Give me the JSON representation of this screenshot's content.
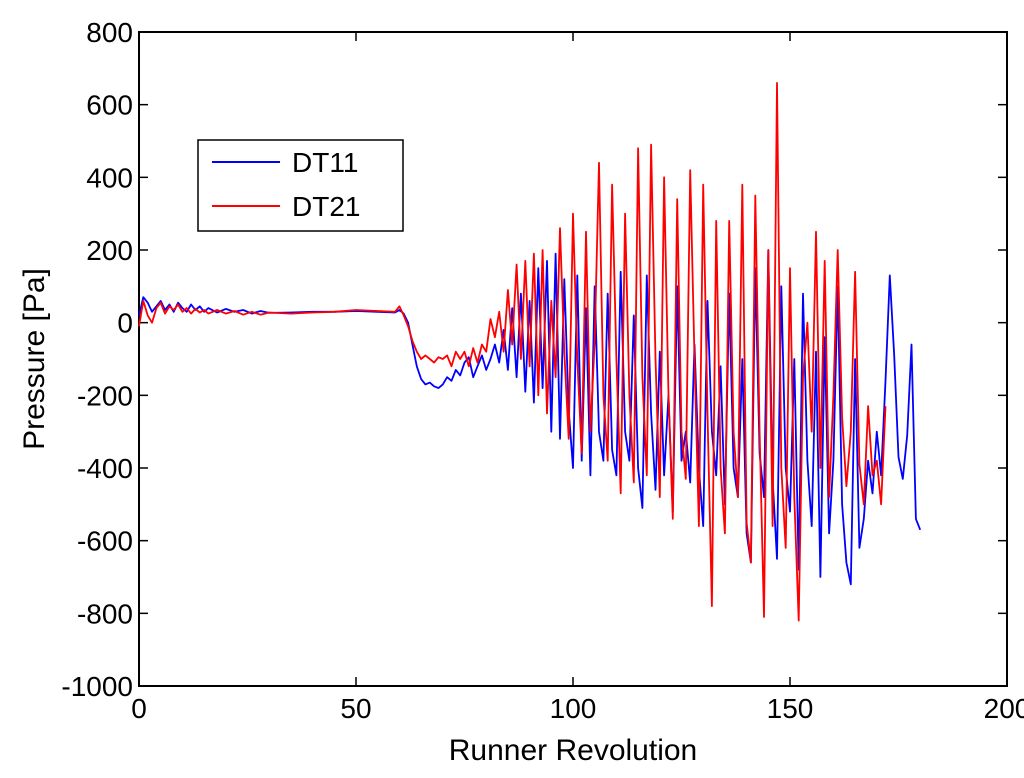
{
  "chart_data": {
    "type": "line",
    "title": "",
    "xlabel": "Runner Revolution",
    "ylabel": "Pressure [Pa]",
    "xlim": [
      0,
      200
    ],
    "ylim": [
      -1000,
      800
    ],
    "xticks": [
      0,
      50,
      100,
      150,
      200
    ],
    "yticks": [
      -1000,
      -800,
      -600,
      -400,
      -200,
      0,
      200,
      400,
      600,
      800
    ],
    "grid": false,
    "legend_position": "upper-left",
    "colors": {
      "DT11": "#0000ff",
      "DT21": "#ff0000",
      "axes": "#000000"
    },
    "series": [
      {
        "name": "DT11",
        "keyframes": [
          [
            0,
            20
          ],
          [
            1,
            70
          ],
          [
            2,
            55
          ],
          [
            3,
            30
          ],
          [
            4,
            45
          ],
          [
            5,
            60
          ],
          [
            6,
            35
          ],
          [
            7,
            50
          ],
          [
            8,
            30
          ],
          [
            9,
            55
          ],
          [
            10,
            40
          ],
          [
            11,
            30
          ],
          [
            12,
            50
          ],
          [
            13,
            35
          ],
          [
            14,
            45
          ],
          [
            15,
            30
          ],
          [
            16,
            40
          ],
          [
            18,
            28
          ],
          [
            20,
            38
          ],
          [
            22,
            30
          ],
          [
            24,
            35
          ],
          [
            26,
            25
          ],
          [
            28,
            32
          ],
          [
            30,
            27
          ],
          [
            35,
            28
          ],
          [
            40,
            30
          ],
          [
            45,
            30
          ],
          [
            50,
            32
          ],
          [
            55,
            30
          ],
          [
            59,
            28
          ],
          [
            60,
            35
          ],
          [
            61,
            25
          ],
          [
            62,
            0
          ],
          [
            63,
            -60
          ],
          [
            64,
            -120
          ],
          [
            65,
            -155
          ],
          [
            66,
            -170
          ],
          [
            67,
            -165
          ],
          [
            68,
            -175
          ],
          [
            69,
            -180
          ],
          [
            70,
            -170
          ],
          [
            71,
            -150
          ],
          [
            72,
            -160
          ],
          [
            73,
            -130
          ],
          [
            74,
            -145
          ],
          [
            75,
            -110
          ],
          [
            76,
            -95
          ],
          [
            77,
            -150
          ],
          [
            78,
            -120
          ],
          [
            79,
            -90
          ],
          [
            80,
            -130
          ],
          [
            81,
            -100
          ],
          [
            82,
            -60
          ],
          [
            83,
            -110
          ],
          [
            84,
            -20
          ],
          [
            85,
            -130
          ],
          [
            86,
            40
          ],
          [
            87,
            -150
          ],
          [
            88,
            80
          ],
          [
            89,
            -190
          ],
          [
            90,
            60
          ],
          [
            91,
            -220
          ],
          [
            92,
            150
          ],
          [
            93,
            -180
          ],
          [
            94,
            170
          ],
          [
            95,
            -300
          ],
          [
            96,
            190
          ],
          [
            97,
            -320
          ],
          [
            98,
            120
          ],
          [
            99,
            -240
          ],
          [
            100,
            -400
          ],
          [
            101,
            130
          ],
          [
            102,
            -380
          ],
          [
            103,
            40
          ],
          [
            104,
            -420
          ],
          [
            105,
            100
          ],
          [
            106,
            -300
          ],
          [
            107,
            -380
          ],
          [
            108,
            80
          ],
          [
            109,
            -350
          ],
          [
            110,
            -420
          ],
          [
            111,
            140
          ],
          [
            112,
            -300
          ],
          [
            113,
            -380
          ],
          [
            114,
            20
          ],
          [
            115,
            -400
          ],
          [
            116,
            -510
          ],
          [
            117,
            130
          ],
          [
            118,
            -250
          ],
          [
            119,
            -460
          ],
          [
            120,
            -80
          ],
          [
            121,
            -420
          ],
          [
            122,
            -200
          ],
          [
            123,
            -520
          ],
          [
            124,
            100
          ],
          [
            125,
            -380
          ],
          [
            126,
            -300
          ],
          [
            127,
            -440
          ],
          [
            128,
            -60
          ],
          [
            129,
            -400
          ],
          [
            130,
            -560
          ],
          [
            131,
            60
          ],
          [
            132,
            -300
          ],
          [
            133,
            -420
          ],
          [
            134,
            -120
          ],
          [
            135,
            -500
          ],
          [
            136,
            80
          ],
          [
            137,
            -400
          ],
          [
            138,
            -480
          ],
          [
            139,
            -100
          ],
          [
            140,
            -580
          ],
          [
            141,
            -660
          ],
          [
            142,
            150
          ],
          [
            143,
            -360
          ],
          [
            144,
            -480
          ],
          [
            145,
            200
          ],
          [
            146,
            -430
          ],
          [
            147,
            -650
          ],
          [
            148,
            100
          ],
          [
            149,
            -400
          ],
          [
            150,
            -520
          ],
          [
            151,
            -100
          ],
          [
            152,
            -680
          ],
          [
            153,
            80
          ],
          [
            154,
            -380
          ],
          [
            155,
            -560
          ],
          [
            156,
            -80
          ],
          [
            157,
            -700
          ],
          [
            158,
            -40
          ],
          [
            159,
            -580
          ],
          [
            160,
            -380
          ],
          [
            161,
            100
          ],
          [
            162,
            -500
          ],
          [
            163,
            -660
          ],
          [
            164,
            -720
          ],
          [
            165,
            -100
          ],
          [
            166,
            -620
          ],
          [
            167,
            -540
          ],
          [
            168,
            -380
          ],
          [
            169,
            -470
          ],
          [
            170,
            -300
          ],
          [
            171,
            -420
          ],
          [
            172,
            -160
          ],
          [
            173,
            130
          ],
          [
            174,
            -90
          ],
          [
            175,
            -370
          ],
          [
            176,
            -430
          ],
          [
            177,
            -310
          ],
          [
            178,
            -60
          ],
          [
            179,
            -540
          ],
          [
            180,
            -570
          ]
        ]
      },
      {
        "name": "DT21",
        "keyframes": [
          [
            0,
            -10
          ],
          [
            1,
            60
          ],
          [
            2,
            20
          ],
          [
            3,
            0
          ],
          [
            4,
            40
          ],
          [
            5,
            55
          ],
          [
            6,
            25
          ],
          [
            7,
            45
          ],
          [
            8,
            35
          ],
          [
            9,
            50
          ],
          [
            10,
            30
          ],
          [
            11,
            40
          ],
          [
            12,
            25
          ],
          [
            13,
            38
          ],
          [
            14,
            28
          ],
          [
            15,
            35
          ],
          [
            16,
            25
          ],
          [
            18,
            35
          ],
          [
            20,
            25
          ],
          [
            22,
            32
          ],
          [
            24,
            22
          ],
          [
            26,
            30
          ],
          [
            28,
            22
          ],
          [
            30,
            28
          ],
          [
            35,
            25
          ],
          [
            40,
            28
          ],
          [
            45,
            30
          ],
          [
            50,
            35
          ],
          [
            55,
            32
          ],
          [
            59,
            30
          ],
          [
            60,
            45
          ],
          [
            61,
            20
          ],
          [
            62,
            -10
          ],
          [
            63,
            -50
          ],
          [
            64,
            -80
          ],
          [
            65,
            -100
          ],
          [
            66,
            -90
          ],
          [
            67,
            -100
          ],
          [
            68,
            -110
          ],
          [
            69,
            -95
          ],
          [
            70,
            -100
          ],
          [
            71,
            -90
          ],
          [
            72,
            -120
          ],
          [
            73,
            -80
          ],
          [
            74,
            -100
          ],
          [
            75,
            -80
          ],
          [
            76,
            -120
          ],
          [
            77,
            -70
          ],
          [
            78,
            -110
          ],
          [
            79,
            -60
          ],
          [
            80,
            -80
          ],
          [
            81,
            10
          ],
          [
            82,
            -40
          ],
          [
            83,
            30
          ],
          [
            84,
            -80
          ],
          [
            85,
            90
          ],
          [
            86,
            -60
          ],
          [
            87,
            160
          ],
          [
            88,
            -100
          ],
          [
            89,
            170
          ],
          [
            90,
            -120
          ],
          [
            91,
            190
          ],
          [
            92,
            -200
          ],
          [
            93,
            200
          ],
          [
            94,
            -250
          ],
          [
            95,
            60
          ],
          [
            96,
            -150
          ],
          [
            97,
            260
          ],
          [
            98,
            -80
          ],
          [
            99,
            -320
          ],
          [
            100,
            300
          ],
          [
            101,
            -100
          ],
          [
            102,
            -360
          ],
          [
            103,
            250
          ],
          [
            104,
            -300
          ],
          [
            105,
            -50
          ],
          [
            106,
            440
          ],
          [
            107,
            -200
          ],
          [
            108,
            -380
          ],
          [
            109,
            380
          ],
          [
            110,
            -100
          ],
          [
            111,
            -470
          ],
          [
            112,
            300
          ],
          [
            113,
            -200
          ],
          [
            114,
            -440
          ],
          [
            115,
            480
          ],
          [
            116,
            -150
          ],
          [
            117,
            -420
          ],
          [
            118,
            490
          ],
          [
            119,
            -100
          ],
          [
            120,
            -480
          ],
          [
            121,
            400
          ],
          [
            122,
            -200
          ],
          [
            123,
            -540
          ],
          [
            124,
            340
          ],
          [
            125,
            -300
          ],
          [
            126,
            -430
          ],
          [
            127,
            420
          ],
          [
            128,
            -100
          ],
          [
            129,
            -560
          ],
          [
            130,
            380
          ],
          [
            131,
            -250
          ],
          [
            132,
            -780
          ],
          [
            133,
            280
          ],
          [
            134,
            -400
          ],
          [
            135,
            -580
          ],
          [
            136,
            280
          ],
          [
            137,
            -300
          ],
          [
            138,
            -480
          ],
          [
            139,
            380
          ],
          [
            140,
            -550
          ],
          [
            141,
            -660
          ],
          [
            142,
            350
          ],
          [
            143,
            -300
          ],
          [
            144,
            -810
          ],
          [
            145,
            200
          ],
          [
            146,
            -560
          ],
          [
            147,
            660
          ],
          [
            148,
            -400
          ],
          [
            149,
            -620
          ],
          [
            150,
            150
          ],
          [
            151,
            -480
          ],
          [
            152,
            -820
          ],
          [
            153,
            -150
          ],
          [
            154,
            0
          ],
          [
            155,
            -300
          ],
          [
            156,
            250
          ],
          [
            157,
            -400
          ],
          [
            158,
            170
          ],
          [
            159,
            -480
          ],
          [
            160,
            -200
          ],
          [
            161,
            200
          ],
          [
            162,
            -260
          ],
          [
            163,
            -450
          ],
          [
            164,
            -300
          ],
          [
            165,
            140
          ],
          [
            166,
            -390
          ],
          [
            167,
            -500
          ],
          [
            168,
            -230
          ],
          [
            169,
            -420
          ],
          [
            170,
            -380
          ],
          [
            171,
            -500
          ],
          [
            172,
            -230
          ]
        ]
      }
    ]
  }
}
